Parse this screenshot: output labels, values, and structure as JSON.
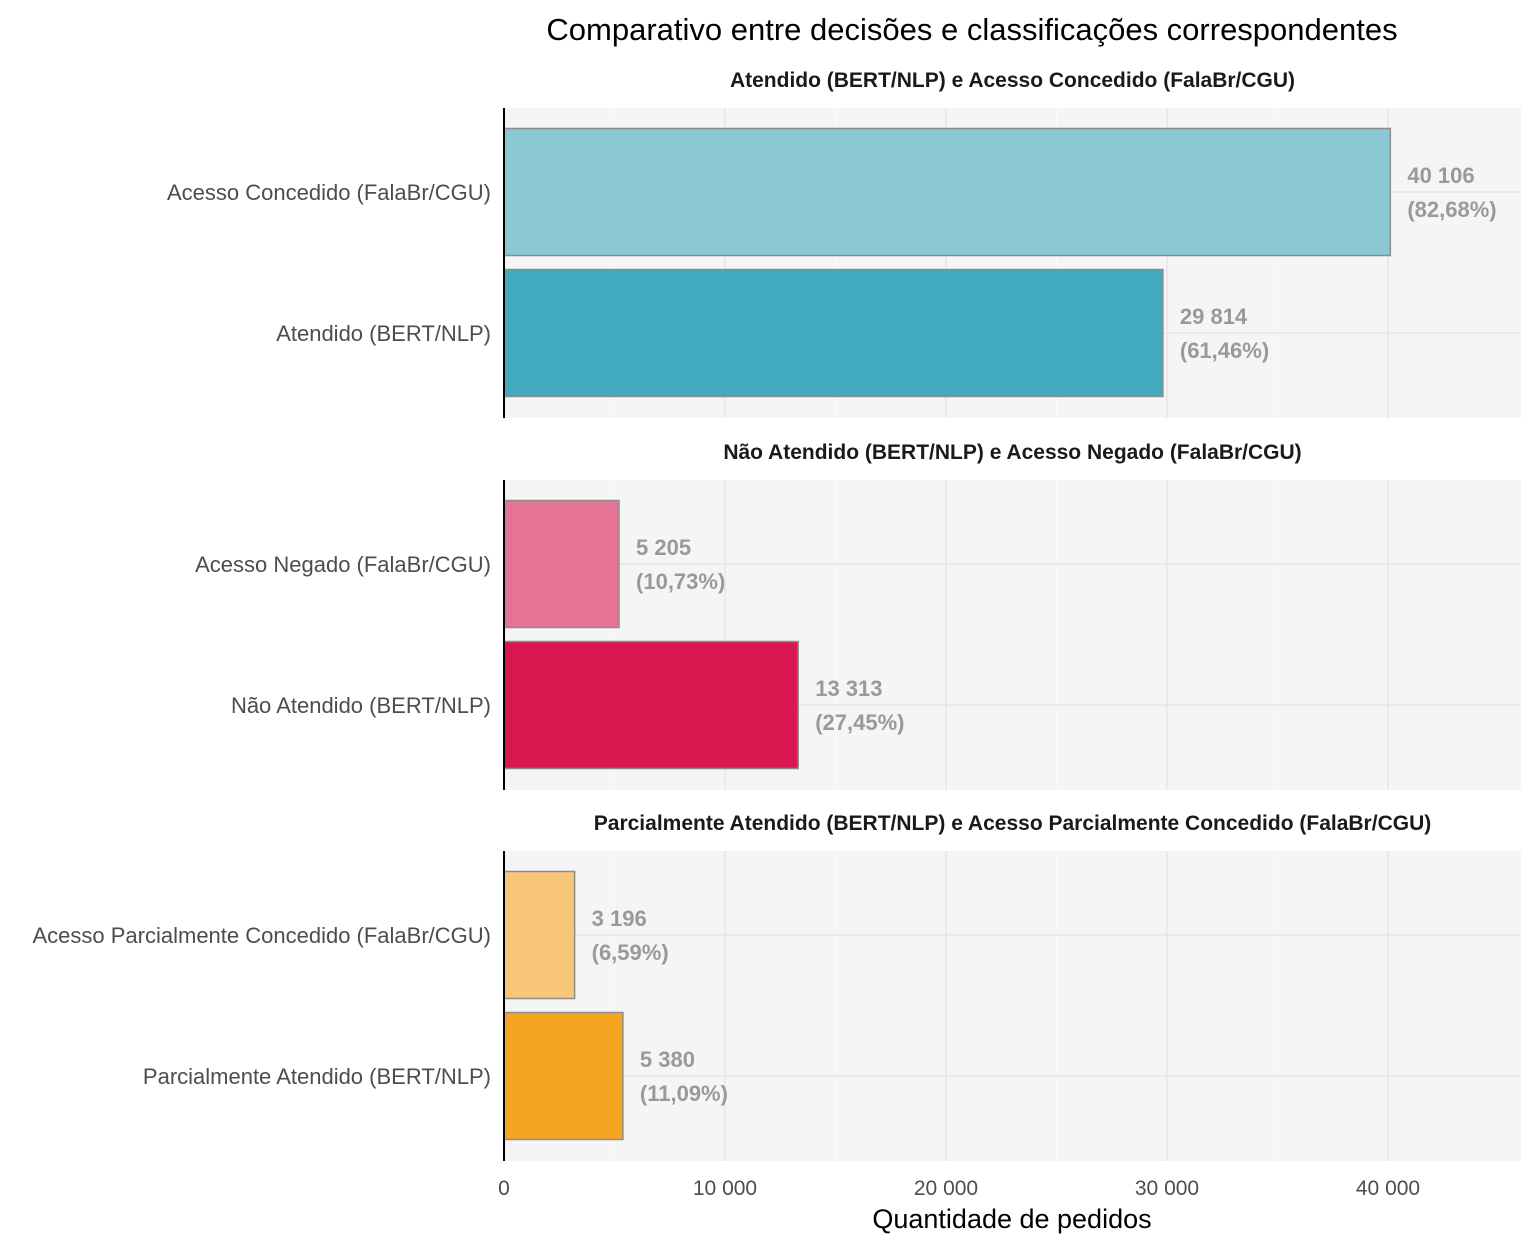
{
  "chart_data": {
    "type": "bar",
    "orientation": "horizontal",
    "title": "Comparativo entre decisões e classificações correspondentes",
    "xlabel": "Quantidade de pedidos",
    "xlim": [
      0,
      46000
    ],
    "x_ticks": [
      0,
      10000,
      20000,
      30000,
      40000
    ],
    "x_tick_labels": [
      "0",
      "10 000",
      "20 000",
      "30 000",
      "40 000"
    ],
    "grid": true,
    "panels": [
      {
        "title": "Atendido (BERT/NLP) e Acesso Concedido (FalaBr/CGU)",
        "bars": [
          {
            "category": "Acesso Concedido (FalaBr/CGU)",
            "value": 40106,
            "value_label": "40 106",
            "pct_label": "(82,68%)",
            "color": "#8AC9D3"
          },
          {
            "category": "Atendido (BERT/NLP)",
            "value": 29814,
            "value_label": "29 814",
            "pct_label": "(61,46%)",
            "color": "#42ABBF"
          }
        ]
      },
      {
        "title": "Não Atendido (BERT/NLP) e Acesso Negado (FalaBr/CGU)",
        "bars": [
          {
            "category": "Acesso Negado (FalaBr/CGU)",
            "value": 5205,
            "value_label": "5 205",
            "pct_label": "(10,73%)",
            "color": "#E47394"
          },
          {
            "category": "Não Atendido (BERT/NLP)",
            "value": 13313,
            "value_label": "13 313",
            "pct_label": "(27,45%)",
            "color": "#D91852"
          }
        ]
      },
      {
        "title": "Parcialmente Atendido (BERT/NLP) e Acesso Parcialmente Concedido (FalaBr/CGU)",
        "bars": [
          {
            "category": "Acesso Parcialmente Concedido (FalaBr/CGU)",
            "value": 3196,
            "value_label": "3 196",
            "pct_label": "(6,59%)",
            "color": "#F7C679"
          },
          {
            "category": "Parcialmente Atendido (BERT/NLP)",
            "value": 5380,
            "value_label": "5 380",
            "pct_label": "(11,09%)",
            "color": "#F6A424"
          }
        ]
      }
    ]
  }
}
